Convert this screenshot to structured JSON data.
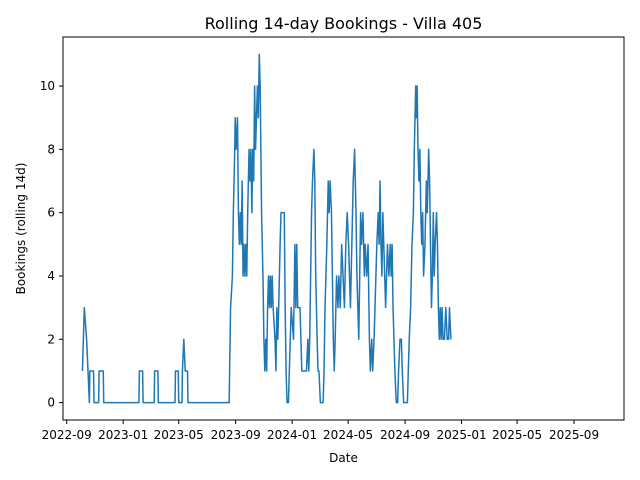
{
  "chart_data": {
    "type": "line",
    "title": "Rolling 14-day Bookings - Villa 405",
    "xlabel": "Date",
    "ylabel": "Bookings (rolling 14d)",
    "xlim": [
      "2022-08-24",
      "2025-12-18"
    ],
    "ylim": [
      -0.55,
      11.55
    ],
    "x_ticks": [
      {
        "date": "2022-09-01",
        "label": "2022-09"
      },
      {
        "date": "2023-01-01",
        "label": "2023-01"
      },
      {
        "date": "2023-05-01",
        "label": "2023-05"
      },
      {
        "date": "2023-09-01",
        "label": "2023-09"
      },
      {
        "date": "2024-01-01",
        "label": "2024-01"
      },
      {
        "date": "2024-05-01",
        "label": "2024-05"
      },
      {
        "date": "2024-09-01",
        "label": "2024-09"
      },
      {
        "date": "2025-01-01",
        "label": "2025-01"
      },
      {
        "date": "2025-05-01",
        "label": "2025-05"
      },
      {
        "date": "2025-09-01",
        "label": "2025-09"
      }
    ],
    "y_ticks": [
      0,
      2,
      4,
      6,
      8,
      10
    ],
    "grid": false,
    "series": [
      {
        "color": "#1f77b4",
        "points": [
          [
            "2022-10-05",
            1
          ],
          [
            "2022-10-07",
            2
          ],
          [
            "2022-10-09",
            3
          ],
          [
            "2022-10-14",
            2
          ],
          [
            "2022-10-17",
            1
          ],
          [
            "2022-10-20",
            0
          ],
          [
            "2022-10-21",
            1
          ],
          [
            "2022-10-29",
            1
          ],
          [
            "2022-10-30",
            0
          ],
          [
            "2022-11-09",
            0
          ],
          [
            "2022-11-10",
            1
          ],
          [
            "2022-11-19",
            1
          ],
          [
            "2022-11-20",
            0
          ],
          [
            "2023-02-04",
            0
          ],
          [
            "2023-02-05",
            1
          ],
          [
            "2023-02-12",
            1
          ],
          [
            "2023-02-13",
            0
          ],
          [
            "2023-03-09",
            0
          ],
          [
            "2023-03-10",
            1
          ],
          [
            "2023-03-17",
            1
          ],
          [
            "2023-03-18",
            0
          ],
          [
            "2023-04-23",
            0
          ],
          [
            "2023-04-24",
            1
          ],
          [
            "2023-04-30",
            1
          ],
          [
            "2023-05-01",
            0
          ],
          [
            "2023-05-08",
            0
          ],
          [
            "2023-05-09",
            1
          ],
          [
            "2023-05-12",
            2
          ],
          [
            "2023-05-15",
            1
          ],
          [
            "2023-05-20",
            1
          ],
          [
            "2023-05-21",
            0
          ],
          [
            "2023-08-18",
            0
          ],
          [
            "2023-08-19",
            1
          ],
          [
            "2023-08-21",
            3
          ],
          [
            "2023-08-25",
            4
          ],
          [
            "2023-08-27",
            6
          ],
          [
            "2023-08-30",
            8
          ],
          [
            "2023-08-31",
            9
          ],
          [
            "2023-09-02",
            8
          ],
          [
            "2023-09-05",
            9
          ],
          [
            "2023-09-07",
            6
          ],
          [
            "2023-09-09",
            5
          ],
          [
            "2023-09-11",
            6
          ],
          [
            "2023-09-13",
            5
          ],
          [
            "2023-09-15",
            7
          ],
          [
            "2023-09-17",
            4
          ],
          [
            "2023-09-19",
            5
          ],
          [
            "2023-09-21",
            4
          ],
          [
            "2023-09-23",
            5
          ],
          [
            "2023-09-25",
            4
          ],
          [
            "2023-09-27",
            6
          ],
          [
            "2023-09-30",
            8
          ],
          [
            "2023-10-02",
            7
          ],
          [
            "2023-10-04",
            8
          ],
          [
            "2023-10-06",
            6
          ],
          [
            "2023-10-08",
            8
          ],
          [
            "2023-10-10",
            7
          ],
          [
            "2023-10-12",
            10
          ],
          [
            "2023-10-14",
            8
          ],
          [
            "2023-10-16",
            9
          ],
          [
            "2023-10-18",
            10
          ],
          [
            "2023-10-20",
            9
          ],
          [
            "2023-10-22",
            11
          ],
          [
            "2023-10-24",
            10
          ],
          [
            "2023-10-27",
            6
          ],
          [
            "2023-10-30",
            4
          ],
          [
            "2023-11-01",
            2
          ],
          [
            "2023-11-03",
            1
          ],
          [
            "2023-11-05",
            2
          ],
          [
            "2023-11-07",
            1
          ],
          [
            "2023-11-09",
            3
          ],
          [
            "2023-11-11",
            4
          ],
          [
            "2023-11-13",
            3
          ],
          [
            "2023-11-15",
            4
          ],
          [
            "2023-11-17",
            3
          ],
          [
            "2023-11-19",
            4
          ],
          [
            "2023-11-21",
            3
          ],
          [
            "2023-11-25",
            2
          ],
          [
            "2023-11-27",
            1
          ],
          [
            "2023-11-29",
            3
          ],
          [
            "2023-12-01",
            2
          ],
          [
            "2023-12-03",
            3
          ],
          [
            "2023-12-06",
            5
          ],
          [
            "2023-12-08",
            6
          ],
          [
            "2023-12-15",
            6
          ],
          [
            "2023-12-17",
            3
          ],
          [
            "2023-12-19",
            1
          ],
          [
            "2023-12-21",
            0
          ],
          [
            "2023-12-24",
            0
          ],
          [
            "2023-12-26",
            1
          ],
          [
            "2023-12-30",
            3
          ],
          [
            "2024-01-04",
            2
          ],
          [
            "2024-01-07",
            5
          ],
          [
            "2024-01-09",
            3
          ],
          [
            "2024-01-11",
            5
          ],
          [
            "2024-01-13",
            3
          ],
          [
            "2024-01-18",
            3
          ],
          [
            "2024-01-20",
            2
          ],
          [
            "2024-01-22",
            1
          ],
          [
            "2024-02-01",
            1
          ],
          [
            "2024-02-04",
            2
          ],
          [
            "2024-02-06",
            1
          ],
          [
            "2024-02-08",
            2
          ],
          [
            "2024-02-10",
            4
          ],
          [
            "2024-02-12",
            6
          ],
          [
            "2024-02-14",
            7
          ],
          [
            "2024-02-17",
            8
          ],
          [
            "2024-02-19",
            7
          ],
          [
            "2024-02-21",
            4
          ],
          [
            "2024-02-24",
            2
          ],
          [
            "2024-02-26",
            1
          ],
          [
            "2024-02-28",
            1
          ],
          [
            "2024-03-02",
            0
          ],
          [
            "2024-03-08",
            0
          ],
          [
            "2024-03-10",
            1
          ],
          [
            "2024-03-12",
            3
          ],
          [
            "2024-03-14",
            4
          ],
          [
            "2024-03-16",
            5
          ],
          [
            "2024-03-19",
            7
          ],
          [
            "2024-03-21",
            6
          ],
          [
            "2024-03-23",
            7
          ],
          [
            "2024-03-26",
            6
          ],
          [
            "2024-03-28",
            4
          ],
          [
            "2024-03-30",
            2
          ],
          [
            "2024-04-01",
            1
          ],
          [
            "2024-04-03",
            2
          ],
          [
            "2024-04-06",
            4
          ],
          [
            "2024-04-09",
            3
          ],
          [
            "2024-04-11",
            4
          ],
          [
            "2024-04-14",
            3
          ],
          [
            "2024-04-17",
            5
          ],
          [
            "2024-04-20",
            4
          ],
          [
            "2024-04-23",
            3
          ],
          [
            "2024-04-26",
            5
          ],
          [
            "2024-04-29",
            6
          ],
          [
            "2024-05-02",
            5
          ],
          [
            "2024-05-06",
            3
          ],
          [
            "2024-05-09",
            5
          ],
          [
            "2024-05-12",
            7
          ],
          [
            "2024-05-15",
            8
          ],
          [
            "2024-05-18",
            6
          ],
          [
            "2024-05-20",
            4
          ],
          [
            "2024-05-22",
            3
          ],
          [
            "2024-05-24",
            2
          ],
          [
            "2024-05-26",
            4
          ],
          [
            "2024-05-28",
            6
          ],
          [
            "2024-05-30",
            5
          ],
          [
            "2024-06-02",
            6
          ],
          [
            "2024-06-05",
            4
          ],
          [
            "2024-06-07",
            5
          ],
          [
            "2024-06-10",
            4
          ],
          [
            "2024-06-13",
            5
          ],
          [
            "2024-06-16",
            2
          ],
          [
            "2024-06-18",
            1
          ],
          [
            "2024-06-21",
            2
          ],
          [
            "2024-06-23",
            1
          ],
          [
            "2024-06-26",
            2
          ],
          [
            "2024-06-28",
            3
          ],
          [
            "2024-06-30",
            4
          ],
          [
            "2024-07-02",
            5
          ],
          [
            "2024-07-05",
            6
          ],
          [
            "2024-07-07",
            5
          ],
          [
            "2024-07-09",
            7
          ],
          [
            "2024-07-11",
            5
          ],
          [
            "2024-07-13",
            4
          ],
          [
            "2024-07-15",
            6
          ],
          [
            "2024-07-17",
            5
          ],
          [
            "2024-07-19",
            4
          ],
          [
            "2024-07-21",
            3
          ],
          [
            "2024-07-23",
            4
          ],
          [
            "2024-07-25",
            5
          ],
          [
            "2024-07-28",
            4
          ],
          [
            "2024-07-31",
            5
          ],
          [
            "2024-08-02",
            4
          ],
          [
            "2024-08-04",
            5
          ],
          [
            "2024-08-06",
            3
          ],
          [
            "2024-08-08",
            2
          ],
          [
            "2024-08-10",
            1
          ],
          [
            "2024-08-13",
            0
          ],
          [
            "2024-08-16",
            0
          ],
          [
            "2024-08-18",
            1
          ],
          [
            "2024-08-21",
            2
          ],
          [
            "2024-08-24",
            2
          ],
          [
            "2024-08-26",
            1
          ],
          [
            "2024-08-29",
            0
          ],
          [
            "2024-09-06",
            0
          ],
          [
            "2024-09-08",
            1
          ],
          [
            "2024-09-10",
            2
          ],
          [
            "2024-09-13",
            3
          ],
          [
            "2024-09-16",
            5
          ],
          [
            "2024-09-19",
            6
          ],
          [
            "2024-09-21",
            8
          ],
          [
            "2024-09-24",
            10
          ],
          [
            "2024-09-25",
            9
          ],
          [
            "2024-09-27",
            10
          ],
          [
            "2024-09-29",
            8
          ],
          [
            "2024-10-01",
            7
          ],
          [
            "2024-10-03",
            8
          ],
          [
            "2024-10-05",
            6
          ],
          [
            "2024-10-07",
            5
          ],
          [
            "2024-10-09",
            6
          ],
          [
            "2024-10-11",
            4
          ],
          [
            "2024-10-14",
            5
          ],
          [
            "2024-10-17",
            7
          ],
          [
            "2024-10-19",
            6
          ],
          [
            "2024-10-22",
            8
          ],
          [
            "2024-10-24",
            7
          ],
          [
            "2024-10-26",
            5
          ],
          [
            "2024-10-28",
            3
          ],
          [
            "2024-10-30",
            4
          ],
          [
            "2024-11-01",
            6
          ],
          [
            "2024-11-03",
            4
          ],
          [
            "2024-11-05",
            5
          ],
          [
            "2024-11-08",
            6
          ],
          [
            "2024-11-10",
            5
          ],
          [
            "2024-11-12",
            3
          ],
          [
            "2024-11-14",
            2
          ],
          [
            "2024-11-16",
            3
          ],
          [
            "2024-11-18",
            2
          ],
          [
            "2024-11-20",
            3
          ],
          [
            "2024-11-22",
            2
          ],
          [
            "2024-11-25",
            2
          ],
          [
            "2024-11-28",
            3
          ],
          [
            "2024-12-01",
            2
          ],
          [
            "2024-12-04",
            2
          ],
          [
            "2024-12-06",
            3
          ],
          [
            "2024-12-09",
            2
          ]
        ]
      }
    ]
  }
}
